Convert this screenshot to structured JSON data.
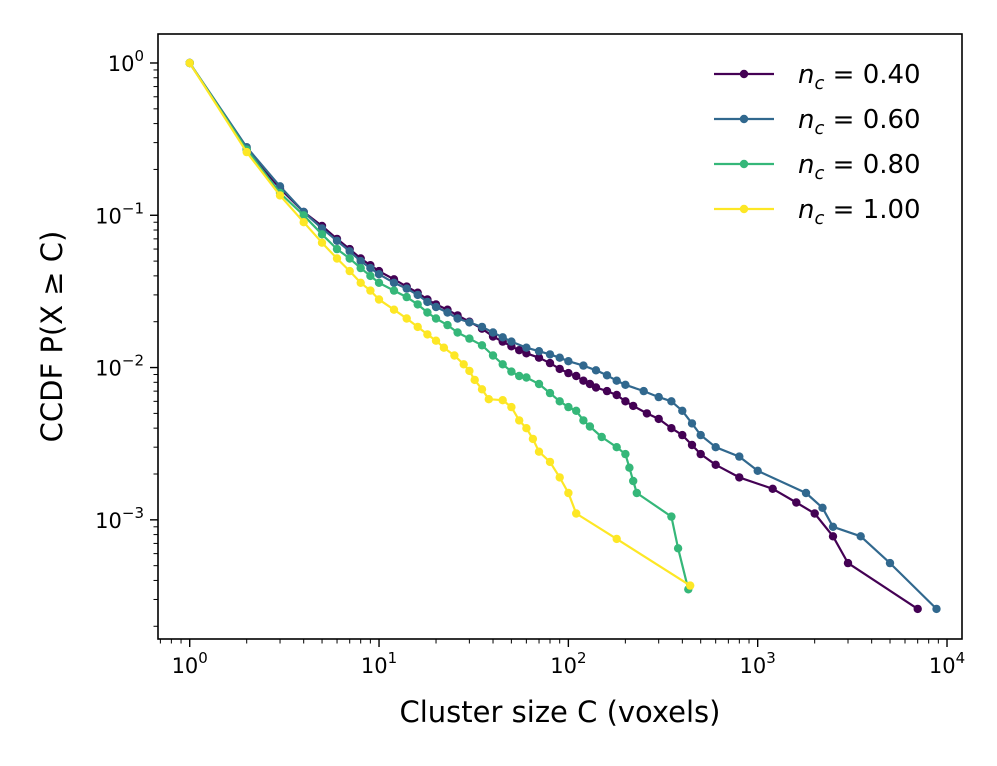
{
  "chart_data": {
    "type": "line",
    "xlabel": "Cluster size C (voxels)",
    "ylabel": "CCDF  P(X ≥ C)",
    "xscale": "log",
    "yscale": "log",
    "xlim": [
      0.68,
      12000
    ],
    "ylim": [
      0.000165,
      1.55
    ],
    "xticks": [
      {
        "value": 1,
        "base": "10",
        "exp": "0"
      },
      {
        "value": 10,
        "base": "10",
        "exp": "1"
      },
      {
        "value": 100,
        "base": "10",
        "exp": "2"
      },
      {
        "value": 1000,
        "base": "10",
        "exp": "3"
      },
      {
        "value": 10000,
        "base": "10",
        "exp": "4"
      }
    ],
    "yticks": [
      {
        "value": 1,
        "base": "10",
        "exp": "0"
      },
      {
        "value": 0.1,
        "base": "10",
        "exp": "−1"
      },
      {
        "value": 0.01,
        "base": "10",
        "exp": "−2"
      },
      {
        "value": 0.001,
        "base": "10",
        "exp": "−3"
      }
    ],
    "grid": false,
    "legend_position": "top-right",
    "series": [
      {
        "name": "n_c = 0.40",
        "label_sym": "n",
        "label_sub": "c",
        "label_val": " = 0.40",
        "color": "#440154",
        "points": [
          [
            1,
            1
          ],
          [
            2,
            0.27
          ],
          [
            3,
            0.15
          ],
          [
            4,
            0.105
          ],
          [
            5,
            0.085
          ],
          [
            6,
            0.07
          ],
          [
            7,
            0.06
          ],
          [
            8,
            0.052
          ],
          [
            9,
            0.047
          ],
          [
            10,
            0.043
          ],
          [
            12,
            0.038
          ],
          [
            14,
            0.034
          ],
          [
            16,
            0.031
          ],
          [
            18,
            0.028
          ],
          [
            20,
            0.026
          ],
          [
            23,
            0.024
          ],
          [
            26,
            0.022
          ],
          [
            30,
            0.02
          ],
          [
            35,
            0.018
          ],
          [
            40,
            0.016
          ],
          [
            45,
            0.0148
          ],
          [
            50,
            0.0138
          ],
          [
            55,
            0.013
          ],
          [
            60,
            0.0124
          ],
          [
            70,
            0.0116
          ],
          [
            80,
            0.0107
          ],
          [
            90,
            0.0098
          ],
          [
            100,
            0.0092
          ],
          [
            110,
            0.0088
          ],
          [
            120,
            0.0082
          ],
          [
            130,
            0.0078
          ],
          [
            140,
            0.0074
          ],
          [
            160,
            0.007
          ],
          [
            180,
            0.0066
          ],
          [
            200,
            0.006
          ],
          [
            220,
            0.0056
          ],
          [
            260,
            0.005
          ],
          [
            300,
            0.0046
          ],
          [
            350,
            0.004
          ],
          [
            400,
            0.0036
          ],
          [
            450,
            0.0031
          ],
          [
            500,
            0.0027
          ],
          [
            600,
            0.0023
          ],
          [
            800,
            0.0019
          ],
          [
            1200,
            0.0016
          ],
          [
            1600,
            0.0013
          ],
          [
            2000,
            0.0011
          ],
          [
            2500,
            0.00078
          ],
          [
            3000,
            0.00052
          ],
          [
            7000,
            0.00026
          ]
        ]
      },
      {
        "name": "n_c = 0.60",
        "label_sym": "n",
        "label_sub": "c",
        "label_val": " = 0.60",
        "color": "#31688e",
        "points": [
          [
            1,
            1
          ],
          [
            2,
            0.28
          ],
          [
            3,
            0.155
          ],
          [
            4,
            0.105
          ],
          [
            5,
            0.082
          ],
          [
            6,
            0.068
          ],
          [
            7,
            0.058
          ],
          [
            8,
            0.05
          ],
          [
            9,
            0.045
          ],
          [
            10,
            0.041
          ],
          [
            12,
            0.036
          ],
          [
            14,
            0.033
          ],
          [
            16,
            0.03
          ],
          [
            18,
            0.027
          ],
          [
            20,
            0.025
          ],
          [
            23,
            0.023
          ],
          [
            26,
            0.021
          ],
          [
            30,
            0.0198
          ],
          [
            35,
            0.0185
          ],
          [
            40,
            0.017
          ],
          [
            45,
            0.0158
          ],
          [
            50,
            0.0148
          ],
          [
            60,
            0.0135
          ],
          [
            70,
            0.0128
          ],
          [
            80,
            0.0122
          ],
          [
            90,
            0.0116
          ],
          [
            100,
            0.011
          ],
          [
            120,
            0.0103
          ],
          [
            140,
            0.0096
          ],
          [
            160,
            0.0089
          ],
          [
            180,
            0.0082
          ],
          [
            200,
            0.0077
          ],
          [
            250,
            0.007
          ],
          [
            300,
            0.0064
          ],
          [
            350,
            0.006
          ],
          [
            400,
            0.0052
          ],
          [
            450,
            0.0043
          ],
          [
            500,
            0.0036
          ],
          [
            600,
            0.003
          ],
          [
            800,
            0.0026
          ],
          [
            1000,
            0.0021
          ],
          [
            1800,
            0.0015
          ],
          [
            2200,
            0.0012
          ],
          [
            2500,
            0.0009
          ],
          [
            3500,
            0.00078
          ],
          [
            5000,
            0.00052
          ],
          [
            8800,
            0.00026
          ]
        ]
      },
      {
        "name": "n_c = 0.80",
        "label_sym": "n",
        "label_sub": "c",
        "label_val": " = 0.80",
        "color": "#35b779",
        "points": [
          [
            1,
            1
          ],
          [
            2,
            0.27
          ],
          [
            3,
            0.14
          ],
          [
            4,
            0.1
          ],
          [
            5,
            0.075
          ],
          [
            6,
            0.06
          ],
          [
            7,
            0.052
          ],
          [
            8,
            0.045
          ],
          [
            9,
            0.04
          ],
          [
            10,
            0.036
          ],
          [
            12,
            0.032
          ],
          [
            14,
            0.029
          ],
          [
            16,
            0.026
          ],
          [
            18,
            0.023
          ],
          [
            20,
            0.021
          ],
          [
            23,
            0.019
          ],
          [
            26,
            0.017
          ],
          [
            30,
            0.0155
          ],
          [
            35,
            0.014
          ],
          [
            40,
            0.012
          ],
          [
            45,
            0.0105
          ],
          [
            50,
            0.0094
          ],
          [
            55,
            0.0088
          ],
          [
            60,
            0.0086
          ],
          [
            70,
            0.0078
          ],
          [
            80,
            0.0068
          ],
          [
            90,
            0.006
          ],
          [
            100,
            0.0055
          ],
          [
            110,
            0.0052
          ],
          [
            120,
            0.0045
          ],
          [
            130,
            0.0041
          ],
          [
            150,
            0.0035
          ],
          [
            180,
            0.003
          ],
          [
            200,
            0.0027
          ],
          [
            210,
            0.0022
          ],
          [
            220,
            0.0018
          ],
          [
            230,
            0.0015
          ],
          [
            350,
            0.00105
          ],
          [
            380,
            0.00065
          ],
          [
            430,
            0.00035
          ]
        ]
      },
      {
        "name": "n_c = 1.00",
        "label_sym": "n",
        "label_sub": "c",
        "label_val": " = 1.00",
        "color": "#fde725",
        "points": [
          [
            1,
            1
          ],
          [
            2,
            0.26
          ],
          [
            3,
            0.135
          ],
          [
            4,
            0.09
          ],
          [
            5,
            0.066
          ],
          [
            6,
            0.052
          ],
          [
            7,
            0.043
          ],
          [
            8,
            0.036
          ],
          [
            9,
            0.032
          ],
          [
            10,
            0.028
          ],
          [
            12,
            0.024
          ],
          [
            14,
            0.021
          ],
          [
            16,
            0.0185
          ],
          [
            18,
            0.0165
          ],
          [
            20,
            0.015
          ],
          [
            22,
            0.0135
          ],
          [
            25,
            0.012
          ],
          [
            28,
            0.0105
          ],
          [
            30,
            0.0095
          ],
          [
            32,
            0.0083
          ],
          [
            35,
            0.0072
          ],
          [
            38,
            0.0062
          ],
          [
            45,
            0.0061
          ],
          [
            50,
            0.0055
          ],
          [
            55,
            0.0045
          ],
          [
            60,
            0.004
          ],
          [
            65,
            0.0034
          ],
          [
            70,
            0.0028
          ],
          [
            80,
            0.0024
          ],
          [
            90,
            0.0019
          ],
          [
            100,
            0.0015
          ],
          [
            110,
            0.0011
          ],
          [
            180,
            0.00075
          ],
          [
            440,
            0.00037
          ]
        ]
      }
    ]
  }
}
